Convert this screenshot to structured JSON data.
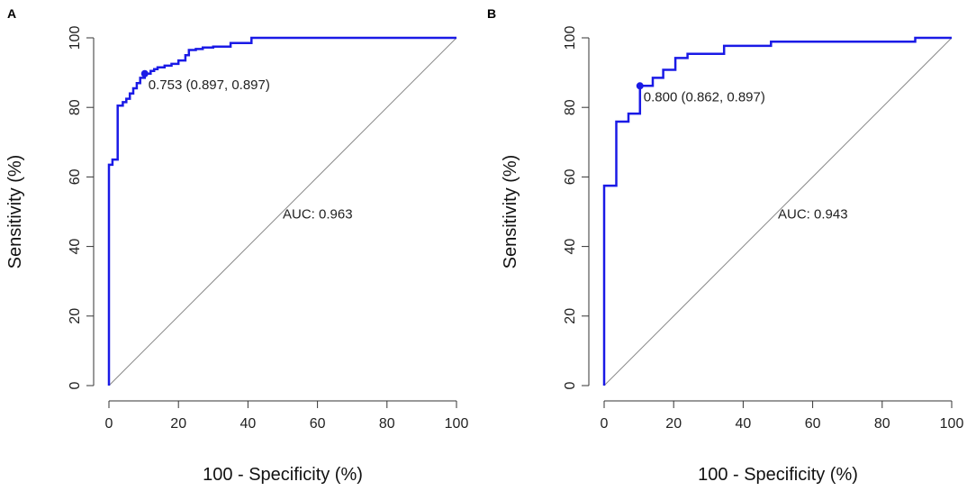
{
  "chart_data": [
    {
      "panel_label": "A",
      "type": "line",
      "xlabel": "100 - Specificity (%)",
      "ylabel": "Sensitivity (%)",
      "xlim": [
        0,
        100
      ],
      "ylim": [
        0,
        100
      ],
      "x_ticks": [
        "0",
        "20",
        "40",
        "60",
        "80",
        "100"
      ],
      "y_ticks": [
        "0",
        "20",
        "40",
        "60",
        "80",
        "100"
      ],
      "auc_label": "AUC: 0.963",
      "auc_pos": [
        50,
        48
      ],
      "threshold_label": "0.753 (0.897, 0.897)",
      "threshold_point": [
        10.3,
        89.7
      ],
      "colors": {
        "roc": "#1a1ae6",
        "diagonal": "#8a8a8a"
      },
      "series": [
        {
          "name": "ROC",
          "x": [
            0,
            0,
            1,
            1,
            2.5,
            2.5,
            4,
            4,
            5,
            5,
            6,
            6,
            7,
            7,
            8,
            8,
            9,
            9,
            10.3,
            10.3,
            12,
            12,
            13,
            13,
            14,
            14,
            16,
            16,
            18,
            18,
            20,
            20,
            22,
            22,
            23,
            23,
            25,
            25,
            27,
            27,
            30,
            30,
            35,
            35,
            41,
            41,
            100
          ],
          "y": [
            0,
            63.5,
            63.5,
            65,
            65,
            80.5,
            80.5,
            81.5,
            81.5,
            82.5,
            82.5,
            84,
            84,
            85.5,
            85.5,
            87,
            87,
            88.5,
            88.5,
            89.7,
            89.7,
            90.5,
            90.5,
            91,
            91,
            91.5,
            91.5,
            92,
            92,
            92.5,
            92.5,
            93.5,
            93.5,
            95,
            95,
            96.5,
            96.5,
            96.8,
            96.8,
            97.2,
            97.2,
            97.5,
            97.5,
            98.5,
            98.5,
            100,
            100
          ]
        }
      ]
    },
    {
      "panel_label": "B",
      "type": "line",
      "xlabel": "100 - Specificity (%)",
      "ylabel": "Sensitivity (%)",
      "xlim": [
        0,
        100
      ],
      "ylim": [
        0,
        100
      ],
      "x_ticks": [
        "0",
        "20",
        "40",
        "60",
        "80",
        "100"
      ],
      "y_ticks": [
        "0",
        "20",
        "40",
        "60",
        "80",
        "100"
      ],
      "auc_label": "AUC: 0.943",
      "auc_pos": [
        50,
        48
      ],
      "threshold_label": "0.800 (0.862, 0.897)",
      "threshold_point": [
        10.3,
        86.2
      ],
      "colors": {
        "roc": "#1a1ae6",
        "diagonal": "#8a8a8a"
      },
      "series": [
        {
          "name": "ROC",
          "x": [
            0,
            0,
            3.5,
            3.5,
            7,
            7,
            10.3,
            10.3,
            14,
            14,
            17,
            17,
            20.5,
            20.5,
            24,
            24,
            34.5,
            34.5,
            48,
            48,
            89.5,
            89.5,
            100
          ],
          "y": [
            0,
            57.5,
            57.5,
            75.9,
            75.9,
            78.2,
            78.2,
            86.2,
            86.2,
            88.5,
            88.5,
            90.8,
            90.8,
            94.2,
            94.2,
            95.4,
            95.4,
            97.7,
            97.7,
            98.9,
            98.9,
            100,
            100
          ]
        }
      ]
    }
  ]
}
